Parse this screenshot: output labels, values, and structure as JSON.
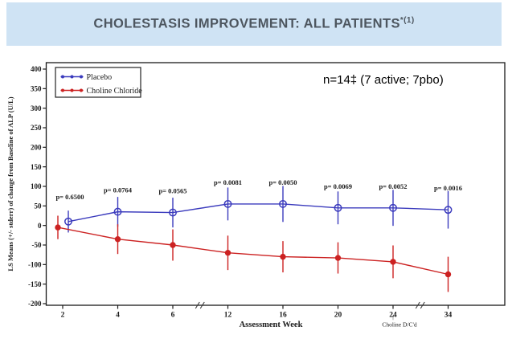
{
  "banner": {
    "title": "CHOLESTASIS IMPROVEMENT: ALL PATIENTS",
    "title_superscript": "*(1)",
    "bg_color": "#cfe3f4",
    "text_color": "#4d565f"
  },
  "annotation": {
    "sample_size": "n=14‡ (7 active; 7pbo)"
  },
  "chart_data": {
    "type": "line",
    "categories": [
      2,
      4,
      6,
      12,
      16,
      20,
      24,
      34
    ],
    "x_axis_breaks": [
      [
        6,
        12
      ],
      [
        24,
        34
      ]
    ],
    "xlabel": "Assessment Week",
    "ylabel": "LS Means (+/- stderr) of change from Baseline of ALP (U/L)",
    "ylim": [
      -200,
      400
    ],
    "ytick_step": 50,
    "grid": false,
    "legend_position": "top-left",
    "series": [
      {
        "name": "Placebo",
        "color": "#3b3bbd",
        "marker": "open-circle",
        "values": [
          10,
          35,
          33,
          55,
          55,
          45,
          45,
          40
        ],
        "stderr": [
          28,
          38,
          38,
          42,
          46,
          42,
          46,
          48
        ],
        "x_jitter": [
          7,
          0,
          0,
          0,
          0,
          0,
          0,
          0
        ]
      },
      {
        "name": "Choline Chloride",
        "color": "#cc2222",
        "marker": "filled-circle",
        "values": [
          -5,
          -35,
          -50,
          -70,
          -80,
          -83,
          -93,
          -125
        ],
        "stderr": [
          30,
          38,
          40,
          44,
          40,
          40,
          42,
          45
        ],
        "x_jitter": [
          -6,
          0,
          0,
          0,
          0,
          0,
          0,
          0
        ]
      }
    ],
    "p_values": [
      "p= 0.6500",
      "p= 0.0764",
      "p= 0.0565",
      "p= 0.0081",
      "p= 0.0050",
      "p= 0.0069",
      "p= 0.0052",
      "p= 0.0016"
    ],
    "event_annotation": {
      "arrow": "↑",
      "label": "Choline D/C'd",
      "at_week": 24
    }
  }
}
